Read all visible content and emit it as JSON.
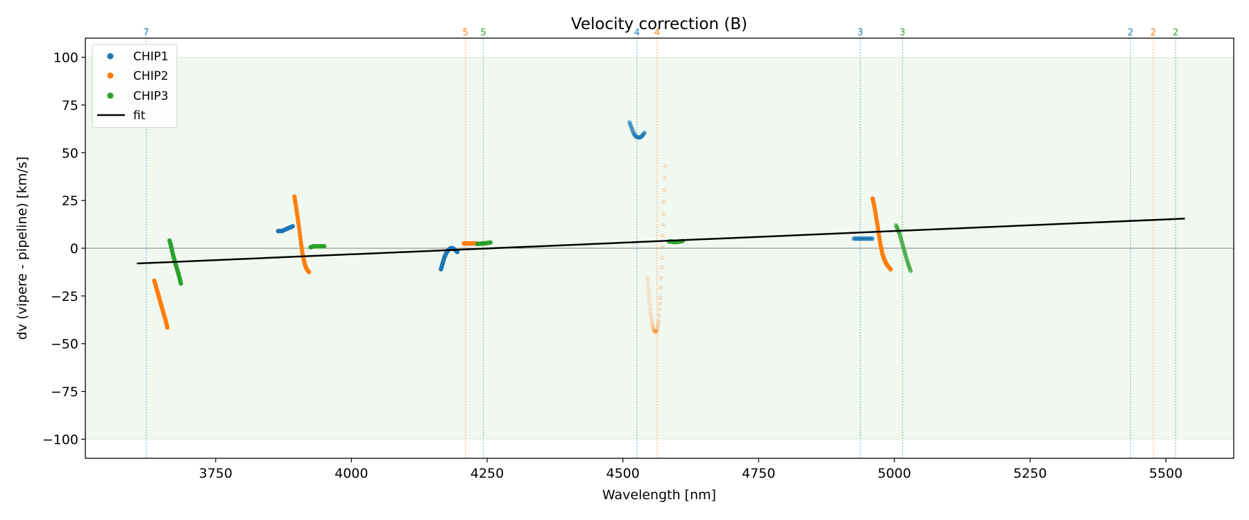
{
  "chart_data": {
    "type": "scatter",
    "title": "Velocity correction (B)",
    "xlabel": "Wavelength [nm]",
    "ylabel": "dv (vipere - pipeline) [km/s]",
    "xlim": [
      3510,
      5625
    ],
    "ylim": [
      -110,
      110
    ],
    "xticks": [
      3750,
      4000,
      4250,
      4500,
      4750,
      5000,
      5250,
      5500
    ],
    "yticks": [
      100,
      75,
      50,
      25,
      0,
      -25,
      -50,
      -75,
      -100
    ],
    "xtick_labels": [
      "3750",
      "4000",
      "4250",
      "4500",
      "4750",
      "5000",
      "5250",
      "5500"
    ],
    "ytick_labels": [
      "100",
      "75",
      "50",
      "25",
      "0",
      "−25",
      "−50",
      "−75",
      "−100"
    ],
    "grid": false,
    "legend_position": "top-left",
    "shaded_band": {
      "ymin": -100,
      "ymax": 100,
      "color": "#2ca02c"
    },
    "zero_line": 0,
    "colors": {
      "CHIP1": "#1f77b4",
      "CHIP2": "#ff7f0e",
      "CHIP3": "#2ca02c",
      "fit": "#000000"
    },
    "series": [
      {
        "name": "CHIP1",
        "segments": [
          {
            "x": [
              3865,
              3868,
              3872,
              3876,
              3880,
              3884,
              3888,
              3892
            ],
            "y": [
              9,
              9,
              9,
              9.5,
              10,
              10.5,
              11,
              11.5
            ],
            "alpha": 1.0
          },
          {
            "x": [
              4165,
              4168,
              4171,
              4174,
              4177,
              4180,
              4183,
              4186,
              4189,
              4192,
              4195
            ],
            "y": [
              -11,
              -8,
              -5,
              -3,
              -1.5,
              -0.5,
              0,
              0,
              -0.5,
              -1,
              -2
            ],
            "alpha": 1.0
          },
          {
            "x": [
              4512,
              4516,
              4520,
              4524,
              4528,
              4532,
              4536,
              4540
            ],
            "y": [
              66,
              63,
              60,
              58.5,
              58,
              58,
              59,
              60.5
            ],
            "alpha": 0.45
          },
          {
            "x": [
              4925,
              4930,
              4935,
              4940,
              4945,
              4950,
              4955,
              4960
            ],
            "y": [
              5,
              5,
              5,
              5,
              5,
              5,
              5,
              5
            ],
            "alpha": 0.45
          }
        ]
      },
      {
        "name": "CHIP2",
        "segments": [
          {
            "x": [
              3637,
              3640,
              3643,
              3646,
              3649,
              3652,
              3655,
              3658,
              3661
            ],
            "y": [
              -17,
              -20,
              -23,
              -26,
              -29,
              -32,
              -35,
              -38,
              -41.5
            ],
            "alpha": 1.0
          },
          {
            "x": [
              3895,
              3898,
              3901,
              3904,
              3907,
              3910,
              3913,
              3916,
              3919,
              3922
            ],
            "y": [
              27,
              22,
              16,
              10,
              3,
              -3,
              -7,
              -10,
              -11.5,
              -12.5
            ],
            "alpha": 1.0
          },
          {
            "x": [
              4207,
              4212,
              4217,
              4222,
              4227,
              4232
            ],
            "y": [
              2.5,
              2.5,
              2.5,
              2.5,
              2.5,
              2.5
            ],
            "alpha": 1.0
          },
          {
            "x": [
              4545,
              4548,
              4551,
              4554,
              4557,
              4560,
              4563,
              4566,
              4569,
              4572,
              4575,
              4578
            ],
            "y": [
              -16,
              -25,
              -34,
              -40,
              -43,
              -44,
              -43,
              -38,
              -26,
              -5,
              18,
              43
            ],
            "alpha": 0.18
          },
          {
            "x": [
              4960,
              4963,
              4966,
              4969,
              4972,
              4975,
              4978,
              4981,
              4984,
              4987,
              4990,
              4993
            ],
            "y": [
              26,
              22,
              17,
              12,
              6,
              1,
              -3,
              -5.5,
              -7.5,
              -9,
              -10,
              -11
            ],
            "alpha": 1.0
          }
        ]
      },
      {
        "name": "CHIP3",
        "segments": [
          {
            "x": [
              3665,
              3668,
              3671,
              3674,
              3677,
              3680,
              3683,
              3686
            ],
            "y": [
              4,
              1,
              -3,
              -6,
              -9,
              -12,
              -15,
              -18.5
            ],
            "alpha": 1.0
          },
          {
            "x": [
              3925,
              3930,
              3935,
              3940,
              3945,
              3950
            ],
            "y": [
              0.5,
              1,
              1,
              1,
              1,
              1
            ],
            "alpha": 1.0
          },
          {
            "x": [
              4232,
              4238,
              4244,
              4250,
              4256
            ],
            "y": [
              2.2,
              2.4,
              2.5,
              2.7,
              3
            ],
            "alpha": 1.0
          },
          {
            "x": [
              4585,
              4590,
              4595,
              4600,
              4605,
              4610
            ],
            "y": [
              3.5,
              3.5,
              3.2,
              3.3,
              3.5,
              3.8
            ],
            "alpha": 1.0
          },
          {
            "x": [
              5003,
              5006,
              5009,
              5012,
              5015,
              5018,
              5021,
              5024,
              5027,
              5030
            ],
            "y": [
              12,
              10,
              8,
              5,
              2,
              -1,
              -4,
              -7,
              -9.5,
              -12
            ],
            "alpha": 0.45
          }
        ]
      }
    ],
    "fit": {
      "name": "fit",
      "x": [
        3605,
        5535
      ],
      "y": [
        -8,
        15.5
      ]
    },
    "vertical_lines": [
      {
        "x": 3622,
        "label": "7",
        "chip": "CHIP1"
      },
      {
        "x": 4210,
        "label": "5",
        "chip": "CHIP2"
      },
      {
        "x": 4243,
        "label": "5",
        "chip": "CHIP3"
      },
      {
        "x": 4526,
        "label": "4",
        "chip": "CHIP1"
      },
      {
        "x": 4563,
        "label": "4",
        "chip": "CHIP2"
      },
      {
        "x": 4937,
        "label": "3",
        "chip": "CHIP1"
      },
      {
        "x": 5015,
        "label": "3",
        "chip": "CHIP3"
      },
      {
        "x": 5435,
        "label": "2",
        "chip": "CHIP1"
      },
      {
        "x": 5477,
        "label": "2",
        "chip": "CHIP2"
      },
      {
        "x": 5518,
        "label": "2",
        "chip": "CHIP3"
      }
    ],
    "legend": [
      "CHIP1",
      "CHIP2",
      "CHIP3",
      "fit"
    ]
  }
}
